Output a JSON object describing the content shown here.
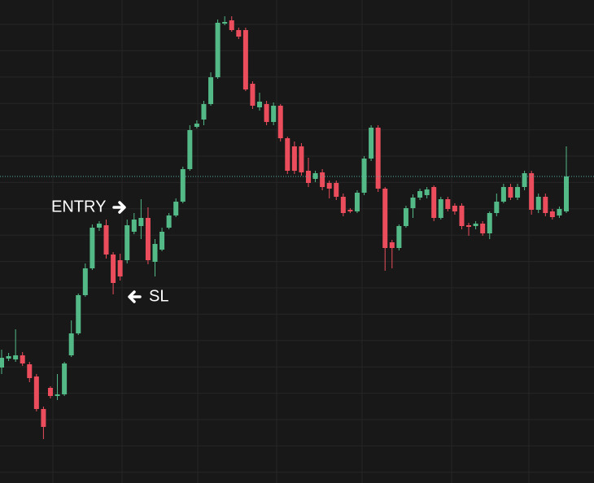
{
  "chart_data": {
    "type": "candlestick",
    "ylim": [
      0,
      594
    ],
    "up_color": "#53b987",
    "down_color": "#eb4d5c",
    "price_line": 377,
    "price_line_color": "#4fb3a0",
    "open": [
      142,
      153,
      152,
      157,
      146,
      131,
      91,
      117,
      107,
      109,
      157,
      184,
      231,
      264,
      314,
      317,
      281,
      274,
      274,
      309,
      316,
      326,
      272,
      287,
      314,
      329,
      346,
      386,
      438,
      447,
      466,
      499,
      565,
      569,
      557,
      557,
      491,
      462,
      466,
      444,
      464,
      424,
      414,
      414,
      384,
      374,
      382,
      369,
      369,
      352,
      336,
      334,
      357,
      399,
      437,
      362,
      296,
      289,
      316,
      338,
      351,
      354,
      364,
      326,
      349,
      341,
      341,
      317,
      316,
      319,
      307,
      332,
      346,
      364,
      351,
      364,
      381,
      336,
      352,
      334,
      329,
      334
    ],
    "high": [
      164,
      160,
      189,
      161,
      149,
      134,
      94,
      119,
      134,
      149,
      200,
      233,
      270,
      318,
      322,
      324,
      284,
      282,
      324,
      332,
      349,
      339,
      300,
      314,
      332,
      350,
      389,
      440,
      446,
      470,
      505,
      570,
      574,
      574,
      560,
      560,
      494,
      480,
      470,
      468,
      466,
      426,
      420,
      418,
      400,
      384,
      386,
      372,
      372,
      356,
      338,
      360,
      402,
      440,
      440,
      364,
      299,
      318,
      341,
      355,
      362,
      364,
      366,
      352,
      352,
      344,
      344,
      320,
      322,
      322,
      334,
      356,
      368,
      368,
      368,
      384,
      384,
      356,
      356,
      337,
      340,
      414
    ],
    "low": [
      134,
      150,
      149,
      144,
      124,
      88,
      54,
      104,
      102,
      107,
      155,
      182,
      229,
      262,
      310,
      276,
      232,
      249,
      270,
      306,
      300,
      269,
      254,
      285,
      312,
      327,
      344,
      384,
      436,
      440,
      464,
      497,
      563,
      555,
      546,
      482,
      460,
      458,
      440,
      440,
      420,
      380,
      380,
      378,
      364,
      370,
      360,
      350,
      348,
      328,
      332,
      332,
      354,
      396,
      358,
      261,
      264,
      286,
      314,
      326,
      348,
      350,
      322,
      324,
      334,
      330,
      312,
      304,
      312,
      304,
      300,
      328,
      344,
      348,
      348,
      360,
      330,
      332,
      328,
      324,
      326,
      332
    ],
    "close": [
      154,
      156,
      157,
      147,
      129,
      91,
      69,
      107,
      109,
      147,
      184,
      231,
      264,
      314,
      319,
      281,
      246,
      254,
      317,
      324,
      326,
      274,
      294,
      309,
      329,
      346,
      386,
      434,
      442,
      466,
      499,
      566,
      567,
      557,
      549,
      484,
      464,
      469,
      444,
      464,
      424,
      384,
      384,
      382,
      369,
      381,
      364,
      362,
      352,
      332,
      334,
      357,
      399,
      437,
      362,
      289,
      289,
      316,
      338,
      351,
      359,
      361,
      326,
      349,
      337,
      334,
      316,
      315,
      319,
      307,
      332,
      346,
      364,
      351,
      364,
      381,
      336,
      352,
      332,
      327,
      337,
      377
    ],
    "annotations": [
      {
        "text": "ENTRY"
      },
      {
        "text": "SL"
      }
    ]
  }
}
